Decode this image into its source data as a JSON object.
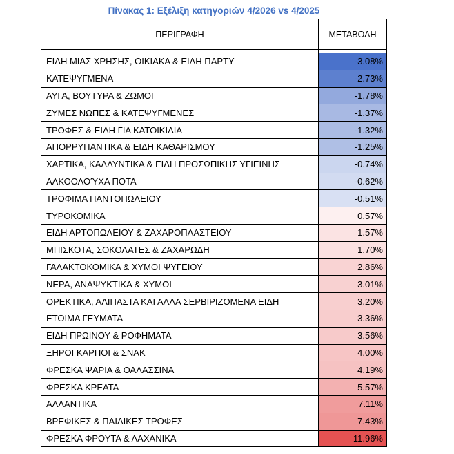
{
  "caption": "Πίνακας 1: Εξέλιξη κατηγοριών 4/2026 vs 4/2025",
  "headers": {
    "description": "ΠΕΡΙΓΡΑΦΗ",
    "change": "ΜΕΤΑΒΟΛΗ"
  },
  "rows": [
    {
      "description": "ΕΙΔΗ ΜΙΑΣ ΧΡΗΣΗΣ, ΟΙΚΙΑΚΑ & ΕΙΔΗ ΠΑΡΤΥ",
      "change": "-3.08%",
      "color": "#4a72cb"
    },
    {
      "description": "ΚΑΤΕΨΥΓΜΕΝΑ",
      "change": "-2.73%",
      "color": "#5d80cf"
    },
    {
      "description": "ΑΥΓΑ, ΒΟΥΤΥΡΑ & ΖΩΜΟΙ",
      "change": "-1.78%",
      "color": "#93a9dd"
    },
    {
      "description": "ΖΥΜΕΣ ΝΩΠΕΣ & ΚΑΤΕΨΥΓΜΕΝΕΣ",
      "change": "-1.37%",
      "color": "#a8b9e3"
    },
    {
      "description": "ΤΡΟΦΕΣ & ΕΙΔΗ ΓΙΑ ΚΑΤΟΙΚΙΔΙΑ",
      "change": "-1.32%",
      "color": "#abbce4"
    },
    {
      "description": "ΑΠΟΡΡΥΠΑΝΤΙΚΑ & ΕΙΔΗ ΚΑΘΑΡΙΣΜΟΥ",
      "change": "-1.25%",
      "color": "#afbfe5"
    },
    {
      "description": "ΧΑΡΤΙΚΑ, ΚΑΛΛΥΝΤΙΚΑ & ΕΙΔΗ ΠΡΟΣΩΠΙΚΗΣ ΥΓΙΕΙΝΗΣ",
      "change": "-0.74%",
      "color": "#cbd6ef"
    },
    {
      "description": "ΑΛΚΟΟΛΟΎΧΑ ΠΟΤΑ",
      "change": "-0.62%",
      "color": "#d2dbf1"
    },
    {
      "description": "ΤΡΟΦΙΜΑ ΠΑΝΤΟΠΩΛΕΙΟΥ",
      "change": "-0.51%",
      "color": "#d8e0f3"
    },
    {
      "description": "ΤΥΡΟΚΟΜΙΚΑ",
      "change": "0.57%",
      "color": "#fdf0f0"
    },
    {
      "description": "ΕΙΔΗ ΑΡΤΟΠΩΛΕΙΟΥ & ΖΑΧΑΡΟΠΛΑΣΤΕΙΟΥ",
      "change": "1.57%",
      "color": "#fbe3e3"
    },
    {
      "description": "ΜΠΙΣΚΟΤΑ, ΣΟΚΟΛΑΤΕΣ & ΖΑΧΑΡΩΔΗ",
      "change": "1.70%",
      "color": "#fbe1e1"
    },
    {
      "description": "ΓΑΛΑΚΤΟΚΟΜΙΚΑ & ΧΥΜΟΙ ΨΥΓΕΙΟΥ",
      "change": "2.86%",
      "color": "#f9d3d3"
    },
    {
      "description": "ΝΕΡΑ, ΑΝΑΨΥΚΤΙΚΑ & ΧΥΜΟΙ",
      "change": "3.01%",
      "color": "#f8d1d1"
    },
    {
      "description": "ΟΡΕΚΤΙΚΑ, ΑΛΙΠΑΣΤΑ ΚΑΙ ΑΛΛΑ ΣΕΡΒΙΡΙΖΟΜΕΝΑ ΕΙΔΗ",
      "change": "3.20%",
      "color": "#f8cfcf"
    },
    {
      "description": "ΕΤΟΙΜΑ ΓΕΥΜΑΤΑ",
      "change": "3.36%",
      "color": "#f8cdcd"
    },
    {
      "description": "ΕΙΔΗ ΠΡΩΙΝΟΥ & ΡΟΦΗΜΑΤΑ",
      "change": "3.56%",
      "color": "#f7caca"
    },
    {
      "description": "ΞΗΡΟΙ ΚΑΡΠΟΙ & ΣΝΑΚ",
      "change": "4.00%",
      "color": "#f7c5c5"
    },
    {
      "description": "ΦΡΕΣΚΑ ΨΑΡΙΑ & ΘΑΛΑΣΣΙΝΑ",
      "change": "4.19%",
      "color": "#f6c2c2"
    },
    {
      "description": "ΦΡΕΣΚΑ ΚΡΕΑΤΑ",
      "change": "5.57%",
      "color": "#f3b1b1"
    },
    {
      "description": "ΑΛΛΑΝΤΙΚΑ",
      "change": "7.11%",
      "color": "#f09c9c"
    },
    {
      "description": "ΒΡΕΦΙΚΕΣ & ΠΑΙΔΙΚΕΣ ΤΡΟΦΕΣ",
      "change": "7.43%",
      "color": "#ef9797"
    },
    {
      "description": "ΦΡΕΣΚΑ ΦΡΟΥΤΑ & ΛΑΧΑΝΙΚΑ",
      "change": "11.96%",
      "color": "#e55252"
    }
  ]
}
